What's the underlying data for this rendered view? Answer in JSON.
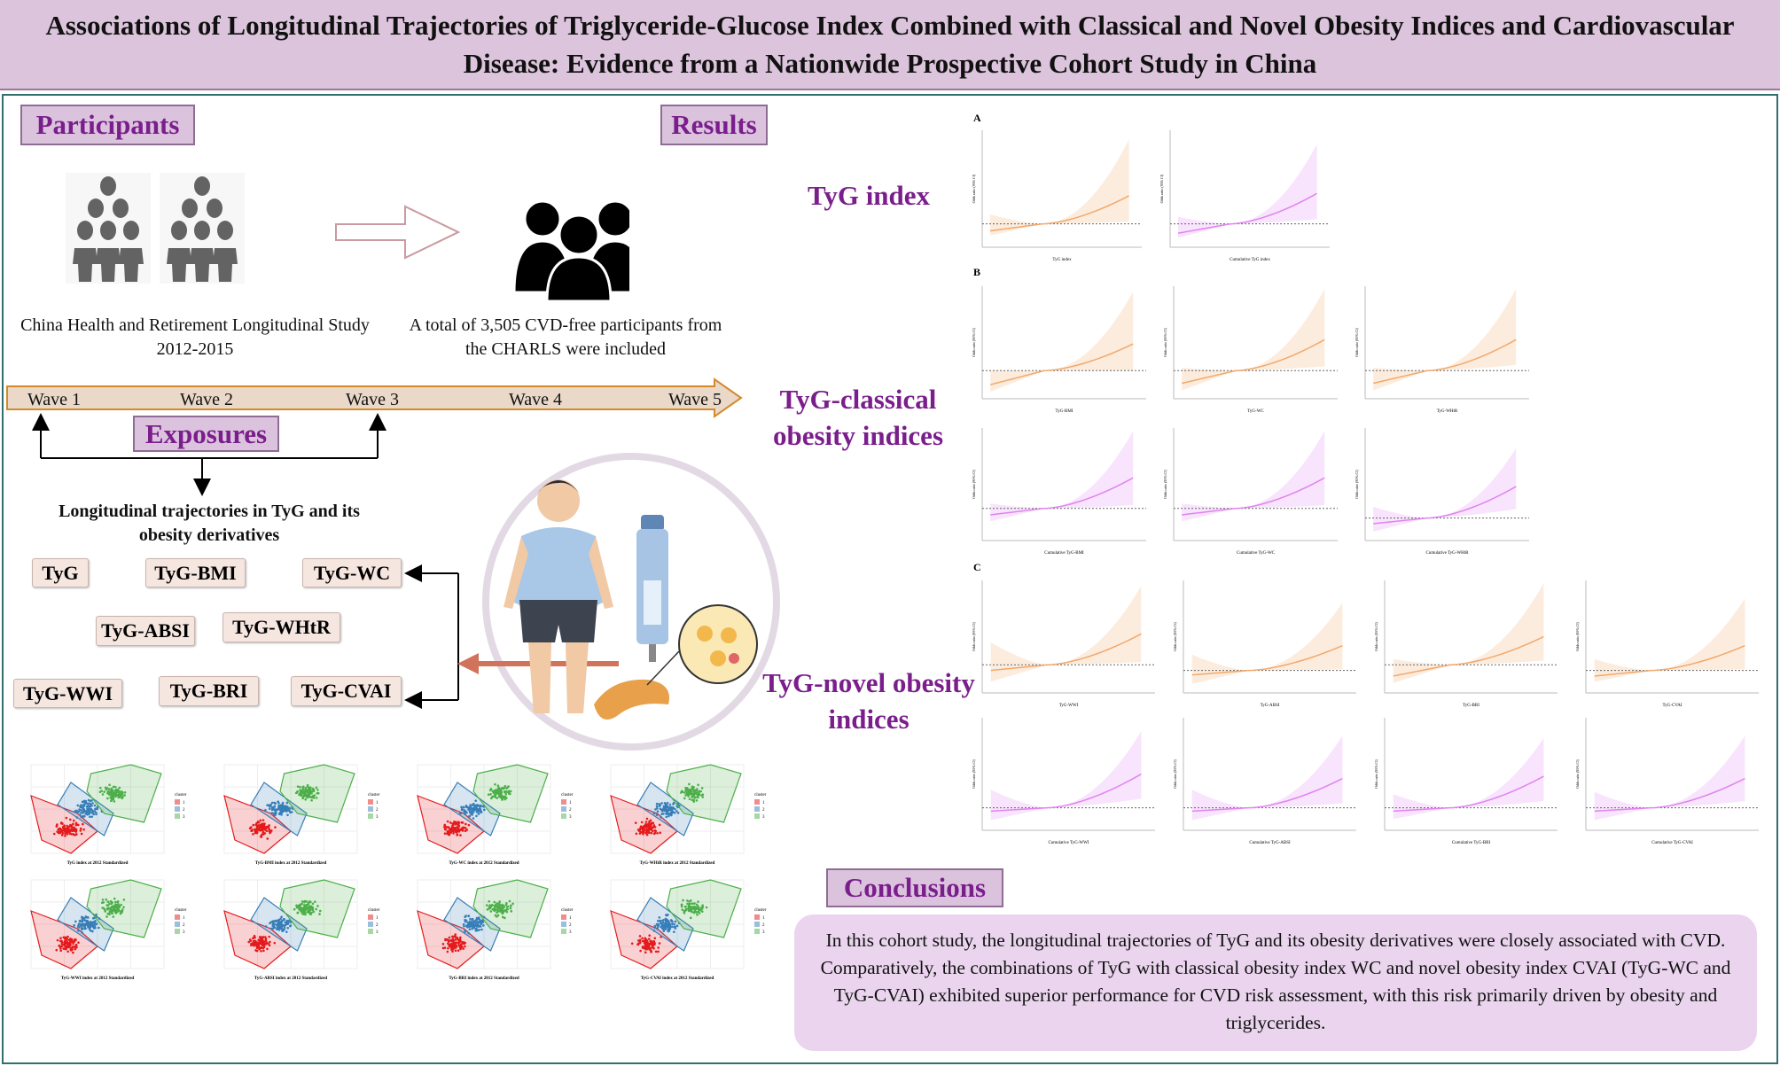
{
  "title": "Associations of Longitudinal Trajectories of Triglyceride-Glucose Index Combined with Classical and Novel Obesity Indices and Cardiovascular Disease: Evidence from a Nationwide Prospective Cohort Study in China",
  "sections": {
    "participants": "Participants",
    "results": "Results",
    "exposures": "Exposures",
    "conclusions": "Conclusions"
  },
  "participants": {
    "source": "China Health and Retirement Longitudinal Study 2012-2015",
    "included": "A total of 3,505 CVD-free participants from the CHARLS were included",
    "icons": [
      "crowd-icon",
      "arrow-right-icon",
      "group-icon"
    ]
  },
  "timeline": {
    "waves": [
      "Wave 1",
      "Wave 2",
      "Wave 3",
      "Wave 4",
      "Wave 5"
    ],
    "color": "#e8d5c4",
    "border": "#d4892b"
  },
  "exposures": {
    "heading": "Longitudinal trajectories in TyG and its obesity derivatives",
    "indices": [
      "TyG",
      "TyG-BMI",
      "TyG-WC",
      "TyG-ABSI",
      "TyG-WHtR",
      "TyG-WWI",
      "TyG-BRI",
      "TyG-CVAI"
    ]
  },
  "results": {
    "labels": {
      "a": "TyG index",
      "b": "TyG-classical obesity indices",
      "c": "TyG-novel obesity indices"
    },
    "panels": [
      "A",
      "B",
      "C"
    ]
  },
  "colors": {
    "accent": "#7a1e8c",
    "label_bg": "#dbc3de",
    "orange": "#f2a86a",
    "purple": "#e083f0",
    "cluster": [
      "#e41a1c",
      "#377eb8",
      "#4daf4a"
    ]
  },
  "conclusion": "In this cohort study, the longitudinal trajectories of TyG and its obesity derivatives were closely associated with CVD. Comparatively, the combinations of TyG with classical obesity index WC and novel obesity index CVAI (TyG-WC and TyG-CVAI) exhibited superior performance for CVD risk assessment, with this risk primarily driven by obesity and triglycerides.",
  "chart_data": [
    {
      "type": "scatter",
      "legend_title": "cluster",
      "legend": [
        "1",
        "2",
        "3"
      ],
      "legend_position": "right",
      "plots": [
        {
          "xlabel": "TyG index at 2012 Standardized"
        },
        {
          "xlabel": "TyG-BMI index at 2012 Standardized"
        },
        {
          "xlabel": "TyG-WC index at 2012 Standardized"
        },
        {
          "xlabel": "TyG-WHtR index at 2012 Standardized"
        },
        {
          "xlabel": "TyG-WWI index at 2012 Standardized"
        },
        {
          "xlabel": "TyG-ABSI index at 2012 Standardized"
        },
        {
          "xlabel": "TyG-BRI index at 2012 Standardized"
        },
        {
          "xlabel": "TyG-CVAI index at 2012 Standardized"
        }
      ]
    },
    {
      "type": "line",
      "ylabel": "Odds ratio (95% CI)",
      "reference_line": 1,
      "plots": [
        {
          "panel": "A",
          "xlabel": "TyG index",
          "series": "orange",
          "ymax": 5,
          "or_start": 0.7,
          "or_end": 2.2,
          "ci_start": [
            0.5,
            1.4
          ],
          "ci_end": [
            1.1,
            4.6
          ]
        },
        {
          "panel": "A",
          "xlabel": "Cumulative TyG index",
          "series": "purple",
          "ymax": 5,
          "or_start": 0.6,
          "or_end": 2.3,
          "ci_start": [
            0.4,
            1.3
          ],
          "ci_end": [
            1.2,
            4.4
          ]
        },
        {
          "panel": "B",
          "xlabel": "TyG-BMI",
          "series": "orange",
          "ymax": 4,
          "or_start": 0.5,
          "or_end": 1.95,
          "ci_start": [
            0.25,
            1
          ],
          "ci_end": [
            1,
            3.8
          ]
        },
        {
          "panel": "B",
          "xlabel": "TyG-WC",
          "series": "orange",
          "ymax": 4,
          "or_start": 0.55,
          "or_end": 2.1,
          "ci_start": [
            0.3,
            1.1
          ],
          "ci_end": [
            1.15,
            3.9
          ]
        },
        {
          "panel": "B",
          "xlabel": "TyG-WHtR",
          "series": "orange",
          "ymax": 4,
          "or_start": 0.55,
          "or_end": 2.1,
          "ci_start": [
            0.3,
            1.1
          ],
          "ci_end": [
            1.2,
            3.9
          ]
        },
        {
          "panel": "B",
          "xlabel": "Cumulative TyG-BMI",
          "series": "purple",
          "ymax": 3.5,
          "or_start": 0.8,
          "or_end": 1.95,
          "ci_start": [
            0.6,
            1.15
          ],
          "ci_end": [
            1.1,
            3.4
          ]
        },
        {
          "panel": "B",
          "xlabel": "Cumulative TyG-WC",
          "series": "purple",
          "ymax": 3.5,
          "or_start": 0.8,
          "or_end": 1.95,
          "ci_start": [
            0.6,
            1.15
          ],
          "ci_end": [
            1.1,
            3.4
          ]
        },
        {
          "panel": "B",
          "xlabel": "Cumulative TyG-WHtR",
          "series": "purple",
          "ymax": 5,
          "or_start": 0.75,
          "or_end": 2.4,
          "ci_start": [
            0.4,
            1.5
          ],
          "ci_end": [
            1.4,
            4.1
          ]
        },
        {
          "panel": "C",
          "xlabel": "TyG-WWI",
          "series": "orange",
          "ymax": 4,
          "or_start": 0.8,
          "or_end": 2.1,
          "ci_start": [
            0.4,
            1.8
          ],
          "ci_end": [
            1.1,
            3.8
          ]
        },
        {
          "panel": "C",
          "xlabel": "TyG-ABSI",
          "series": "orange",
          "ymax": 5,
          "or_start": 0.8,
          "or_end": 2.1,
          "ci_start": [
            0.4,
            1.7
          ],
          "ci_end": [
            1.05,
            4.0
          ]
        },
        {
          "panel": "C",
          "xlabel": "TyG-BRI",
          "series": "orange",
          "ymax": 4,
          "or_start": 0.6,
          "or_end": 2.0,
          "ci_start": [
            0.35,
            1.2
          ],
          "ci_end": [
            1.15,
            3.9
          ]
        },
        {
          "panel": "C",
          "xlabel": "TyG-CVAI",
          "series": "orange",
          "ymax": 5,
          "or_start": 0.75,
          "or_end": 2.1,
          "ci_start": [
            0.5,
            1.5
          ],
          "ci_end": [
            1.05,
            4.2
          ]
        },
        {
          "panel": "C",
          "xlabel": "Cumulative TyG-WWI",
          "series": "purple",
          "ymax": 5,
          "or_start": 0.85,
          "or_end": 2.5,
          "ci_start": [
            0.45,
            1.8
          ],
          "ci_end": [
            1.4,
            4.4
          ]
        },
        {
          "panel": "C",
          "xlabel": "Cumulative TyG-ABSI",
          "series": "purple",
          "ymax": 5,
          "or_start": 0.85,
          "or_end": 2.3,
          "ci_start": [
            0.45,
            1.8
          ],
          "ci_end": [
            1.2,
            4.2
          ]
        },
        {
          "panel": "C",
          "xlabel": "Cumulative TyG-BRI",
          "series": "purple",
          "ymax": 5,
          "or_start": 0.85,
          "or_end": 2.4,
          "ci_start": [
            0.5,
            1.6
          ],
          "ci_end": [
            1.3,
            4.1
          ]
        },
        {
          "panel": "C",
          "xlabel": "Cumulative TyG-CVAI",
          "series": "purple",
          "ymax": 5,
          "or_start": 0.85,
          "or_end": 2.3,
          "ci_start": [
            0.45,
            1.7
          ],
          "ci_end": [
            1.3,
            4.2
          ]
        }
      ]
    }
  ]
}
